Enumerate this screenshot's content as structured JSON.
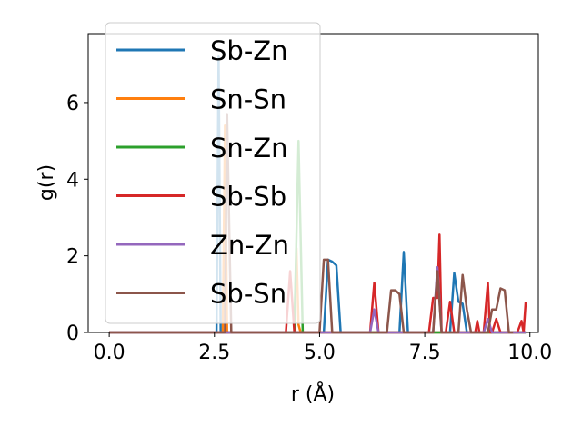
{
  "chart_data": {
    "type": "line",
    "xlabel": "r (Å)",
    "ylabel": "g(r)",
    "xlim": [
      -0.5,
      10.2
    ],
    "ylim": [
      0,
      7.8
    ],
    "xticks": [
      0.0,
      2.5,
      5.0,
      7.5,
      10.0
    ],
    "xtick_labels": [
      "0.0",
      "2.5",
      "5.0",
      "7.5",
      "10.0"
    ],
    "yticks": [
      0,
      2,
      4,
      6
    ],
    "ytick_labels": [
      "0",
      "2",
      "4",
      "6"
    ],
    "grid": false,
    "legend_position": "upper-left",
    "series": [
      {
        "name": "Sb-Zn",
        "color": "#1f77b4",
        "points": [
          [
            0.0,
            0
          ],
          [
            2.5,
            0
          ],
          [
            2.55,
            0
          ],
          [
            2.6,
            7.2
          ],
          [
            2.65,
            0
          ],
          [
            5.0,
            0
          ],
          [
            5.1,
            0
          ],
          [
            5.2,
            1.9
          ],
          [
            5.3,
            1.85
          ],
          [
            5.4,
            1.75
          ],
          [
            5.5,
            0
          ],
          [
            6.8,
            0
          ],
          [
            6.9,
            0
          ],
          [
            7.0,
            2.1
          ],
          [
            7.1,
            0
          ],
          [
            8.0,
            0
          ],
          [
            8.1,
            0
          ],
          [
            8.2,
            1.55
          ],
          [
            8.3,
            0.8
          ],
          [
            8.4,
            0.75
          ],
          [
            8.5,
            0
          ],
          [
            9.9,
            0
          ]
        ]
      },
      {
        "name": "Sn-Sn",
        "color": "#ff7f0e",
        "points": [
          [
            0.0,
            0
          ],
          [
            2.7,
            0
          ],
          [
            2.75,
            5.4
          ],
          [
            2.8,
            0
          ],
          [
            4.4,
            0
          ],
          [
            4.45,
            2.2
          ],
          [
            4.5,
            0.2
          ],
          [
            4.55,
            0
          ],
          [
            9.9,
            0
          ]
        ]
      },
      {
        "name": "Sn-Zn",
        "color": "#2ca02c",
        "points": [
          [
            0.0,
            0
          ],
          [
            4.4,
            0
          ],
          [
            4.5,
            5.0
          ],
          [
            4.6,
            0
          ],
          [
            9.9,
            0
          ]
        ]
      },
      {
        "name": "Sb-Sb",
        "color": "#d62728",
        "points": [
          [
            0.0,
            0
          ],
          [
            4.2,
            0
          ],
          [
            4.3,
            1.6
          ],
          [
            4.4,
            0
          ],
          [
            6.2,
            0
          ],
          [
            6.3,
            1.3
          ],
          [
            6.4,
            0
          ],
          [
            7.6,
            0
          ],
          [
            7.7,
            0.9
          ],
          [
            7.8,
            0.9
          ],
          [
            7.85,
            2.55
          ],
          [
            7.9,
            0
          ],
          [
            8.0,
            0
          ],
          [
            8.1,
            0.8
          ],
          [
            8.2,
            0
          ],
          [
            8.7,
            0
          ],
          [
            8.75,
            0.3
          ],
          [
            8.8,
            0
          ],
          [
            8.9,
            0
          ],
          [
            9.0,
            1.3
          ],
          [
            9.05,
            0
          ],
          [
            9.1,
            0
          ],
          [
            9.2,
            0.35
          ],
          [
            9.3,
            0
          ],
          [
            9.7,
            0
          ],
          [
            9.8,
            0.3
          ],
          [
            9.85,
            0
          ],
          [
            9.9,
            0.8
          ]
        ]
      },
      {
        "name": "Zn-Zn",
        "color": "#9467bd",
        "points": [
          [
            0.0,
            0
          ],
          [
            6.2,
            0
          ],
          [
            6.3,
            0.6
          ],
          [
            6.4,
            0
          ],
          [
            7.7,
            0
          ],
          [
            7.8,
            1.7
          ],
          [
            7.9,
            0
          ],
          [
            8.9,
            0
          ],
          [
            9.0,
            0.35
          ],
          [
            9.1,
            0
          ],
          [
            9.9,
            0
          ]
        ]
      },
      {
        "name": "Sb-Sn",
        "color": "#8c564b",
        "points": [
          [
            0.0,
            0
          ],
          [
            2.75,
            0
          ],
          [
            2.8,
            5.7
          ],
          [
            2.9,
            0
          ],
          [
            5.0,
            0
          ],
          [
            5.1,
            1.9
          ],
          [
            5.2,
            1.9
          ],
          [
            5.3,
            0
          ],
          [
            6.6,
            0
          ],
          [
            6.7,
            1.1
          ],
          [
            6.8,
            1.1
          ],
          [
            6.9,
            1.0
          ],
          [
            7.0,
            0
          ],
          [
            7.7,
            0
          ],
          [
            7.8,
            1.6
          ],
          [
            7.9,
            0
          ],
          [
            8.3,
            0
          ],
          [
            8.4,
            1.5
          ],
          [
            8.5,
            0.6
          ],
          [
            8.6,
            0
          ],
          [
            9.0,
            0
          ],
          [
            9.1,
            0.6
          ],
          [
            9.2,
            0.6
          ],
          [
            9.3,
            1.15
          ],
          [
            9.4,
            1.1
          ],
          [
            9.5,
            0
          ],
          [
            9.6,
            0
          ]
        ]
      }
    ]
  }
}
